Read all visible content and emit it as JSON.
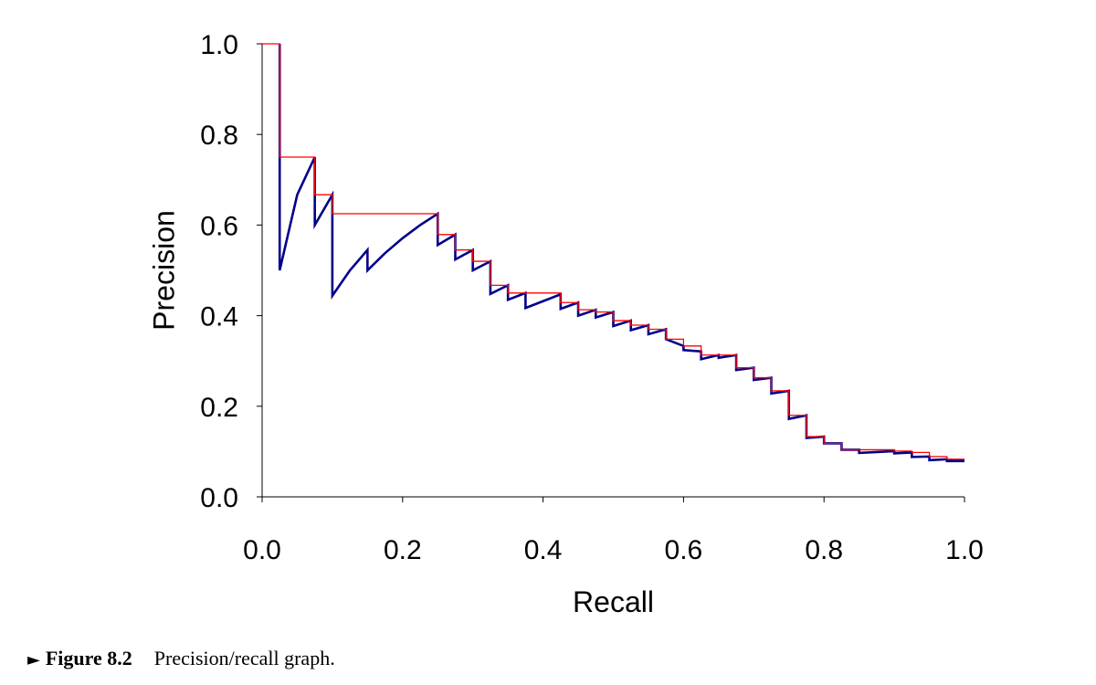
{
  "chart_data": {
    "type": "line",
    "xlabel": "Recall",
    "ylabel": "Precision",
    "xlim": [
      0,
      1
    ],
    "ylim": [
      0,
      1
    ],
    "xticks": [
      "0.0",
      "0.2",
      "0.4",
      "0.6",
      "0.8",
      "1.0"
    ],
    "yticks": [
      "0.0",
      "0.2",
      "0.4",
      "0.6",
      "0.8",
      "1.0"
    ],
    "grid": false,
    "legend": "none",
    "colors": {
      "precision": "#00008b",
      "interpolated": "#ff0000",
      "axis": "#000000"
    },
    "series": [
      {
        "x": [
          0.025,
          0.025,
          0.05,
          0.075,
          0.075,
          0.1,
          0.1,
          0.125,
          0.15,
          0.15,
          0.175,
          0.2,
          0.225,
          0.25,
          0.25,
          0.275,
          0.275,
          0.3,
          0.3,
          0.325,
          0.325,
          0.35,
          0.35,
          0.375,
          0.375,
          0.4,
          0.425,
          0.425,
          0.45,
          0.45,
          0.475,
          0.475,
          0.5,
          0.5,
          0.525,
          0.525,
          0.55,
          0.55,
          0.575,
          0.575,
          0.6,
          0.6,
          0.625,
          0.625,
          0.65,
          0.65,
          0.675,
          0.675,
          0.7,
          0.7,
          0.725,
          0.725,
          0.75,
          0.75,
          0.775,
          0.775,
          0.8,
          0.8,
          0.825,
          0.825,
          0.85,
          0.85,
          0.875,
          0.9,
          0.9,
          0.925,
          0.925,
          0.95,
          0.95,
          0.975,
          0.975,
          1.0
        ],
        "y": [
          1.0,
          0.5,
          0.667,
          0.75,
          0.6,
          0.667,
          0.444,
          0.5,
          0.545,
          0.5,
          0.538,
          0.571,
          0.6,
          0.625,
          0.556,
          0.579,
          0.524,
          0.545,
          0.5,
          0.52,
          0.448,
          0.467,
          0.435,
          0.45,
          0.417,
          0.432,
          0.447,
          0.415,
          0.429,
          0.4,
          0.413,
          0.396,
          0.408,
          0.377,
          0.389,
          0.368,
          0.379,
          0.359,
          0.37,
          0.348,
          0.333,
          0.324,
          0.321,
          0.304,
          0.313,
          0.307,
          0.313,
          0.28,
          0.285,
          0.258,
          0.263,
          0.228,
          0.234,
          0.172,
          0.18,
          0.13,
          0.133,
          0.118,
          0.118,
          0.104,
          0.104,
          0.097,
          0.099,
          0.101,
          0.096,
          0.098,
          0.088,
          0.089,
          0.081,
          0.083,
          0.079,
          0.079
        ]
      },
      {
        "x": [
          0.0,
          0.025,
          0.025,
          0.075,
          0.075,
          0.1,
          0.1,
          0.25,
          0.25,
          0.275,
          0.275,
          0.3,
          0.3,
          0.325,
          0.325,
          0.35,
          0.35,
          0.425,
          0.425,
          0.45,
          0.45,
          0.475,
          0.475,
          0.5,
          0.5,
          0.525,
          0.525,
          0.55,
          0.55,
          0.575,
          0.575,
          0.6,
          0.6,
          0.625,
          0.625,
          0.675,
          0.675,
          0.7,
          0.7,
          0.725,
          0.725,
          0.75,
          0.75,
          0.775,
          0.775,
          0.8,
          0.8,
          0.825,
          0.825,
          0.9,
          0.9,
          0.925,
          0.925,
          0.95,
          0.95,
          0.975,
          0.975,
          1.0
        ],
        "y": [
          1.0,
          1.0,
          0.75,
          0.75,
          0.667,
          0.667,
          0.625,
          0.625,
          0.579,
          0.579,
          0.545,
          0.545,
          0.52,
          0.52,
          0.467,
          0.467,
          0.45,
          0.45,
          0.429,
          0.429,
          0.413,
          0.413,
          0.408,
          0.408,
          0.389,
          0.389,
          0.379,
          0.379,
          0.37,
          0.37,
          0.348,
          0.348,
          0.333,
          0.333,
          0.313,
          0.313,
          0.285,
          0.285,
          0.263,
          0.263,
          0.234,
          0.234,
          0.18,
          0.18,
          0.133,
          0.133,
          0.118,
          0.118,
          0.104,
          0.104,
          0.101,
          0.101,
          0.098,
          0.098,
          0.089,
          0.089,
          0.083,
          0.083
        ]
      }
    ]
  },
  "caption": {
    "marker": "►",
    "label": "Figure 8.2",
    "text": "Precision/recall graph."
  }
}
